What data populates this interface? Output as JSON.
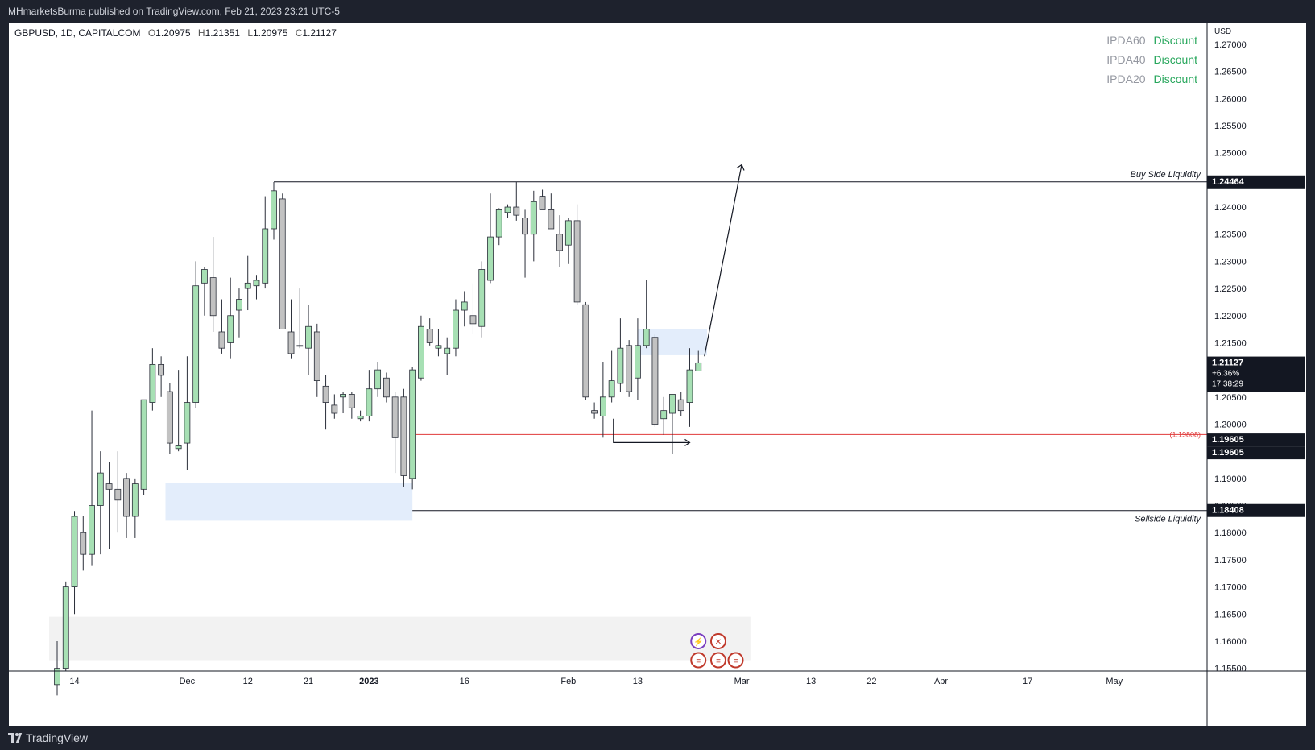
{
  "header": {
    "published_text": "MHmarketsBurma published on TradingView.com, Feb 21, 2023 23:21 UTC-5"
  },
  "footer": {
    "brand": "TradingView"
  },
  "colors": {
    "up": "#a7e0b4",
    "down": "#c2c2c2",
    "wick": "#2a2e39",
    "zone": "#e3edfb",
    "gray_zone": "#f2f2f2",
    "redline": "#e03a3a",
    "ipda_green": "#26a65b"
  },
  "chart_data": {
    "type": "candlestick",
    "symbol_line": {
      "symbol": "GBPUSD, 1D, CAPITALCOM",
      "o_label": "O",
      "o": "1.20975",
      "h_label": "H",
      "h": "1.21351",
      "l_label": "L",
      "l": "1.20975",
      "c_label": "C",
      "c": "1.21127"
    },
    "ipda": [
      {
        "label": "IPDA60",
        "value": "Discount"
      },
      {
        "label": "IPDA40",
        "value": "Discount"
      },
      {
        "label": "IPDA20",
        "value": "Discount"
      }
    ],
    "currency": "USD",
    "y_range": [
      1.1545,
      1.274
    ],
    "y_ticks": [
      "1.27000",
      "1.26500",
      "1.26000",
      "1.25500",
      "1.25000",
      "1.24500",
      "1.24000",
      "1.23500",
      "1.23000",
      "1.22500",
      "1.22000",
      "1.21500",
      "1.21000",
      "1.20500",
      "1.20000",
      "1.19500",
      "1.19000",
      "1.18500",
      "1.18000",
      "1.17500",
      "1.17000",
      "1.16500",
      "1.16000",
      "1.15500"
    ],
    "x_ticks": [
      {
        "label": "14",
        "idx": 2
      },
      {
        "label": "Dec",
        "idx": 15
      },
      {
        "label": "12",
        "idx": 22
      },
      {
        "label": "21",
        "idx": 29
      },
      {
        "label": "2023",
        "idx": 36
      },
      {
        "label": "16",
        "idx": 47
      },
      {
        "label": "Feb",
        "idx": 59
      },
      {
        "label": "13",
        "idx": 67
      },
      {
        "label": "Mar",
        "idx": 79
      },
      {
        "label": "13",
        "idx": 87
      },
      {
        "label": "22",
        "idx": 94
      },
      {
        "label": "Apr",
        "idx": 102
      },
      {
        "label": "17",
        "idx": 112
      },
      {
        "label": "May",
        "idx": 122
      }
    ],
    "candles": [
      {
        "o": 1.152,
        "h": 1.16,
        "l": 1.15,
        "c": 1.155
      },
      {
        "o": 1.155,
        "h": 1.171,
        "l": 1.1545,
        "c": 1.17
      },
      {
        "o": 1.17,
        "h": 1.184,
        "l": 1.165,
        "c": 1.183
      },
      {
        "o": 1.18,
        "h": 1.183,
        "l": 1.173,
        "c": 1.176
      },
      {
        "o": 1.176,
        "h": 1.2025,
        "l": 1.174,
        "c": 1.185
      },
      {
        "o": 1.185,
        "h": 1.195,
        "l": 1.176,
        "c": 1.191
      },
      {
        "o": 1.189,
        "h": 1.193,
        "l": 1.177,
        "c": 1.188
      },
      {
        "o": 1.188,
        "h": 1.195,
        "l": 1.18,
        "c": 1.186
      },
      {
        "o": 1.19,
        "h": 1.191,
        "l": 1.179,
        "c": 1.183
      },
      {
        "o": 1.183,
        "h": 1.19,
        "l": 1.179,
        "c": 1.189
      },
      {
        "o": 1.188,
        "h": 1.204,
        "l": 1.187,
        "c": 1.2045
      },
      {
        "o": 1.204,
        "h": 1.214,
        "l": 1.2025,
        "c": 1.211
      },
      {
        "o": 1.211,
        "h": 1.2125,
        "l": 1.205,
        "c": 1.209
      },
      {
        "o": 1.206,
        "h": 1.2075,
        "l": 1.1945,
        "c": 1.1965
      },
      {
        "o": 1.1955,
        "h": 1.21,
        "l": 1.195,
        "c": 1.196
      },
      {
        "o": 1.1965,
        "h": 1.2125,
        "l": 1.1915,
        "c": 1.204
      },
      {
        "o": 1.204,
        "h": 1.23,
        "l": 1.203,
        "c": 1.2255
      },
      {
        "o": 1.226,
        "h": 1.229,
        "l": 1.22,
        "c": 1.2285
      },
      {
        "o": 1.227,
        "h": 1.2345,
        "l": 1.217,
        "c": 1.22
      },
      {
        "o": 1.217,
        "h": 1.223,
        "l": 1.213,
        "c": 1.214
      },
      {
        "o": 1.215,
        "h": 1.227,
        "l": 1.212,
        "c": 1.22
      },
      {
        "o": 1.221,
        "h": 1.225,
        "l": 1.216,
        "c": 1.223
      },
      {
        "o": 1.225,
        "h": 1.231,
        "l": 1.221,
        "c": 1.226
      },
      {
        "o": 1.2255,
        "h": 1.2275,
        "l": 1.223,
        "c": 1.2265
      },
      {
        "o": 1.226,
        "h": 1.242,
        "l": 1.225,
        "c": 1.236
      },
      {
        "o": 1.236,
        "h": 1.2446,
        "l": 1.234,
        "c": 1.243
      },
      {
        "o": 1.2415,
        "h": 1.2425,
        "l": 1.2185,
        "c": 1.2175
      },
      {
        "o": 1.217,
        "h": 1.223,
        "l": 1.212,
        "c": 1.213
      },
      {
        "o": 1.2145,
        "h": 1.225,
        "l": 1.214,
        "c": 1.2145
      },
      {
        "o": 1.214,
        "h": 1.222,
        "l": 1.209,
        "c": 1.218
      },
      {
        "o": 1.217,
        "h": 1.2185,
        "l": 1.205,
        "c": 1.208
      },
      {
        "o": 1.207,
        "h": 1.209,
        "l": 1.199,
        "c": 1.204
      },
      {
        "o": 1.2035,
        "h": 1.2055,
        "l": 1.201,
        "c": 1.202
      },
      {
        "o": 1.205,
        "h": 1.206,
        "l": 1.202,
        "c": 1.2055
      },
      {
        "o": 1.2055,
        "h": 1.206,
        "l": 1.201,
        "c": 1.203
      },
      {
        "o": 1.201,
        "h": 1.2025,
        "l": 1.2005,
        "c": 1.2015
      },
      {
        "o": 1.2015,
        "h": 1.21,
        "l": 1.2005,
        "c": 1.2065
      },
      {
        "o": 1.2065,
        "h": 1.2115,
        "l": 1.205,
        "c": 1.21
      },
      {
        "o": 1.2085,
        "h": 1.2095,
        "l": 1.204,
        "c": 1.205
      },
      {
        "o": 1.205,
        "h": 1.206,
        "l": 1.191,
        "c": 1.1975
      },
      {
        "o": 1.205,
        "h": 1.2065,
        "l": 1.1885,
        "c": 1.1905
      },
      {
        "o": 1.19,
        "h": 1.2105,
        "l": 1.188,
        "c": 1.21
      },
      {
        "o": 1.2085,
        "h": 1.22,
        "l": 1.208,
        "c": 1.218
      },
      {
        "o": 1.2175,
        "h": 1.2195,
        "l": 1.2145,
        "c": 1.215
      },
      {
        "o": 1.214,
        "h": 1.2175,
        "l": 1.2125,
        "c": 1.2145
      },
      {
        "o": 1.213,
        "h": 1.216,
        "l": 1.209,
        "c": 1.214
      },
      {
        "o": 1.214,
        "h": 1.223,
        "l": 1.2125,
        "c": 1.221
      },
      {
        "o": 1.221,
        "h": 1.2245,
        "l": 1.218,
        "c": 1.2225
      },
      {
        "o": 1.22,
        "h": 1.226,
        "l": 1.2165,
        "c": 1.2185
      },
      {
        "o": 1.218,
        "h": 1.23,
        "l": 1.216,
        "c": 1.2285
      },
      {
        "o": 1.2265,
        "h": 1.2425,
        "l": 1.226,
        "c": 1.2345
      },
      {
        "o": 1.2345,
        "h": 1.2398,
        "l": 1.233,
        "c": 1.2395
      },
      {
        "o": 1.239,
        "h": 1.2405,
        "l": 1.238,
        "c": 1.24
      },
      {
        "o": 1.24,
        "h": 1.2446,
        "l": 1.2375,
        "c": 1.2385
      },
      {
        "o": 1.238,
        "h": 1.2395,
        "l": 1.227,
        "c": 1.235
      },
      {
        "o": 1.235,
        "h": 1.243,
        "l": 1.23,
        "c": 1.241
      },
      {
        "o": 1.242,
        "h": 1.2432,
        "l": 1.2395,
        "c": 1.2395
      },
      {
        "o": 1.2395,
        "h": 1.2425,
        "l": 1.236,
        "c": 1.236
      },
      {
        "o": 1.235,
        "h": 1.2385,
        "l": 1.229,
        "c": 1.232
      },
      {
        "o": 1.233,
        "h": 1.238,
        "l": 1.2295,
        "c": 1.2375
      },
      {
        "o": 1.2375,
        "h": 1.2405,
        "l": 1.222,
        "c": 1.2225
      },
      {
        "o": 1.222,
        "h": 1.2225,
        "l": 1.2045,
        "c": 1.205
      },
      {
        "o": 1.2025,
        "h": 1.204,
        "l": 1.201,
        "c": 1.202
      },
      {
        "o": 1.2015,
        "h": 1.2115,
        "l": 1.1975,
        "c": 1.205
      },
      {
        "o": 1.205,
        "h": 1.2135,
        "l": 1.204,
        "c": 1.208
      },
      {
        "o": 1.2075,
        "h": 1.2195,
        "l": 1.206,
        "c": 1.214
      },
      {
        "o": 1.2145,
        "h": 1.2155,
        "l": 1.205,
        "c": 1.206
      },
      {
        "o": 1.2085,
        "h": 1.2195,
        "l": 1.2045,
        "c": 1.2145
      },
      {
        "o": 1.2145,
        "h": 1.2265,
        "l": 1.214,
        "c": 1.2175
      },
      {
        "o": 1.216,
        "h": 1.2165,
        "l": 1.1995,
        "c": 1.2
      },
      {
        "o": 1.201,
        "h": 1.205,
        "l": 1.198,
        "c": 1.2025
      },
      {
        "o": 1.202,
        "h": 1.2055,
        "l": 1.1945,
        "c": 1.2055
      },
      {
        "o": 1.2045,
        "h": 1.206,
        "l": 1.2015,
        "c": 1.2025
      },
      {
        "o": 1.204,
        "h": 1.214,
        "l": 1.1995,
        "c": 1.21
      },
      {
        "o": 1.2098,
        "h": 1.2135,
        "l": 1.2098,
        "c": 1.2113
      }
    ],
    "levels": [
      {
        "name": "Buy Side Liquidity",
        "price": 1.24464,
        "label": "1.24464"
      },
      {
        "name": "Sellside Liquidity",
        "price": 1.18408,
        "label": "1.18408"
      },
      {
        "name": "red-line",
        "price": 1.19808,
        "label": "(1.19808)"
      }
    ],
    "price_tags": {
      "current_price": "1.21127",
      "change": "+6.36%",
      "countdown": "17:38:29",
      "tag_a": "1.19605",
      "tag_b": "1.19605"
    },
    "zones": [
      {
        "from_idx": 12.5,
        "to_idx": 41,
        "top": 1.1892,
        "bottom": 1.1822
      },
      {
        "from_idx": 67,
        "to_idx": 75,
        "top": 1.2175,
        "bottom": 1.2127
      }
    ],
    "gray_zone": {
      "from_idx": 0,
      "to_idx": 80,
      "top": 1.1645,
      "bottom": 1.1565
    }
  }
}
